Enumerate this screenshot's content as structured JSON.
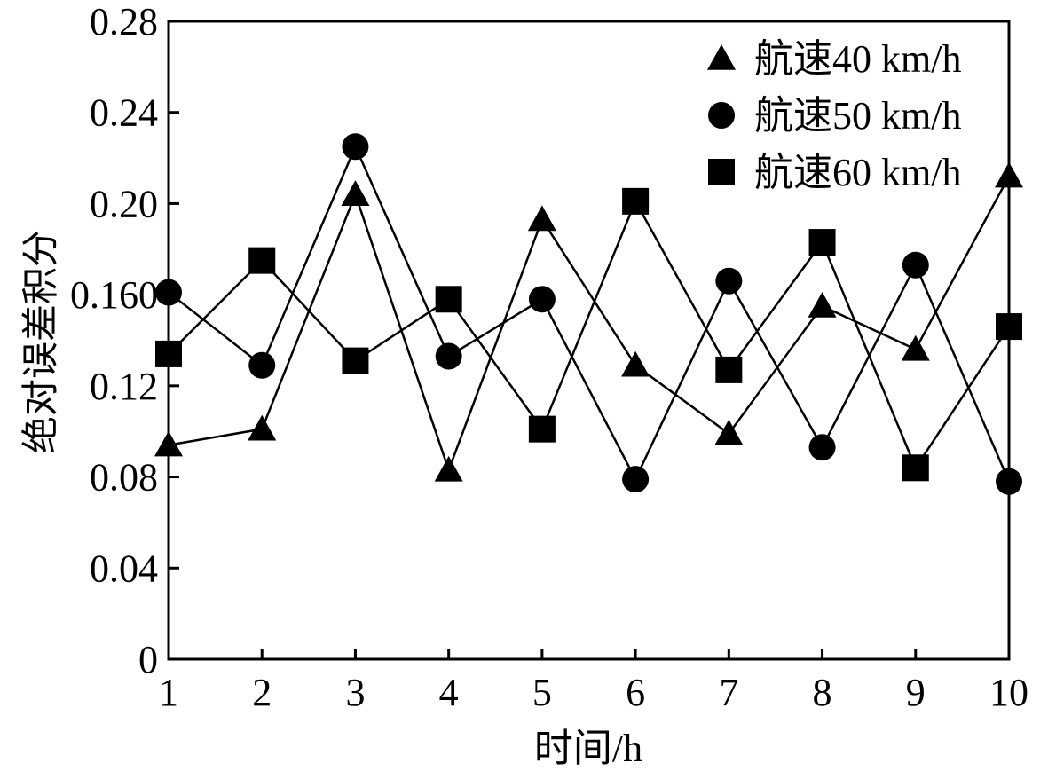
{
  "chart_data": {
    "type": "line",
    "title": "",
    "xlabel": "时间/h",
    "ylabel": "绝对误差积分",
    "x": [
      1,
      2,
      3,
      4,
      5,
      6,
      7,
      8,
      9,
      10
    ],
    "xlim": [
      1,
      10
    ],
    "ylim": [
      0,
      0.28
    ],
    "x_ticks": [
      "1",
      "2",
      "3",
      "4",
      "5",
      "6",
      "7",
      "8",
      "9",
      "10"
    ],
    "y_ticks": [
      "0",
      "0.04",
      "0.08",
      "0.12",
      "0.160",
      "0.20",
      "0.24",
      "0.28"
    ],
    "y_tick_values": [
      0,
      0.04,
      0.08,
      0.12,
      0.16,
      0.2,
      0.24,
      0.28
    ],
    "grid": false,
    "legend_position": "top-right",
    "series": [
      {
        "name": "航速40 km/h",
        "marker": "triangle",
        "color": "#000000",
        "values": [
          0.094,
          0.101,
          0.204,
          0.083,
          0.193,
          0.129,
          0.099,
          0.155,
          0.136,
          0.212
        ]
      },
      {
        "name": "航速50 km/h",
        "marker": "circle",
        "color": "#000000",
        "values": [
          0.161,
          0.129,
          0.225,
          0.133,
          0.158,
          0.079,
          0.166,
          0.093,
          0.173,
          0.078
        ]
      },
      {
        "name": "航速60 km/h",
        "marker": "square",
        "color": "#000000",
        "values": [
          0.134,
          0.175,
          0.131,
          0.158,
          0.101,
          0.201,
          0.127,
          0.183,
          0.084,
          0.146
        ]
      }
    ]
  }
}
